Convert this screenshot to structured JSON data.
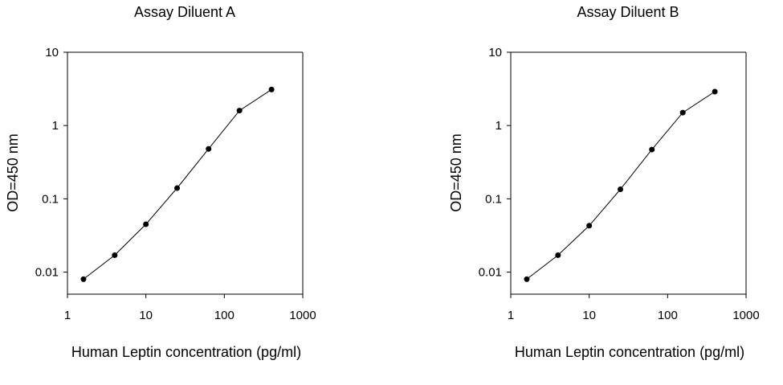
{
  "chart_data": [
    {
      "type": "line",
      "title": "Assay Diluent A",
      "xlabel": "Human Leptin concentration (pg/ml)",
      "ylabel": "OD=450 nm",
      "x_scale": "log",
      "y_scale": "log",
      "xlim": [
        1,
        1000
      ],
      "ylim": [
        0.005,
        10
      ],
      "x_ticks": [
        "1",
        "10",
        "100",
        "1000"
      ],
      "y_ticks": [
        "10",
        "1",
        "0.1",
        "0.01"
      ],
      "grid": false,
      "x": [
        1.6,
        4,
        10,
        25,
        63,
        156,
        400
      ],
      "y": [
        0.008,
        0.017,
        0.045,
        0.14,
        0.48,
        1.6,
        3.1
      ]
    },
    {
      "type": "line",
      "title": "Assay Diluent B",
      "xlabel": "Human Leptin concentration (pg/ml)",
      "ylabel": "OD=450 nm",
      "x_scale": "log",
      "y_scale": "log",
      "xlim": [
        1,
        1000
      ],
      "ylim": [
        0.005,
        10
      ],
      "x_ticks": [
        "1",
        "10",
        "100",
        "1000"
      ],
      "y_ticks": [
        "10",
        "1",
        "0.1",
        "0.01"
      ],
      "grid": false,
      "x": [
        1.6,
        4,
        10,
        25,
        63,
        156,
        400
      ],
      "y": [
        0.008,
        0.017,
        0.043,
        0.135,
        0.47,
        1.5,
        2.9
      ]
    }
  ]
}
